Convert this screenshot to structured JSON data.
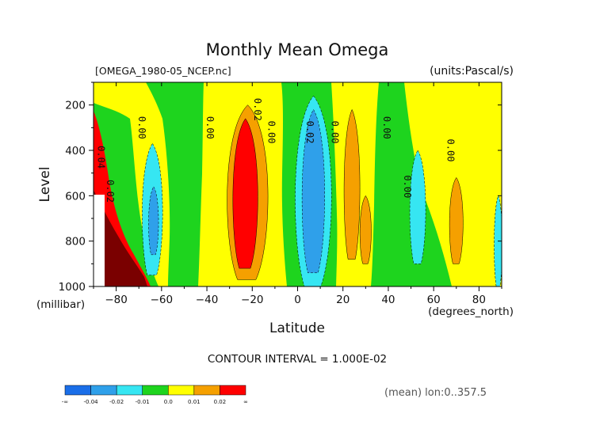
{
  "chart_data": {
    "type": "heatmap",
    "title": "Monthly Mean Omega",
    "file_label": "[OMEGA_1980-05_NCEP.nc]",
    "units_label": "(units:Pascal/s)",
    "xlabel": "Latitude",
    "x_units": "(degrees_north)",
    "ylabel": "Level",
    "y_units": "(millibar)",
    "xlim": [
      -90,
      90
    ],
    "ylim": [
      1000,
      100
    ],
    "x_ticks": [
      -80,
      -60,
      -40,
      -20,
      0,
      20,
      40,
      60,
      80
    ],
    "y_ticks": [
      200,
      400,
      600,
      800,
      1000
    ],
    "contour_interval": "CONTOUR INTERVAL = 1.000E-02",
    "footnote": "(mean) lon:0..357.5",
    "colorbar": {
      "colors": [
        "#1a6ee8",
        "#2fa0ea",
        "#36e6f2",
        "#1ed41e",
        "#ffff00",
        "#f5a000",
        "#ff0000"
      ],
      "labels": [
        "-∞",
        "-0.04",
        "-0.02",
        "-0.01",
        "0.0",
        "0.01",
        "0.02",
        "∞"
      ]
    },
    "contour_labels": [
      {
        "lat": -88,
        "lev": 430,
        "text": "0.04"
      },
      {
        "lat": -84,
        "lev": 580,
        "text": "0.02"
      },
      {
        "lat": -70,
        "lev": 300,
        "text": "0.00"
      },
      {
        "lat": -40,
        "lev": 300,
        "text": "0.00"
      },
      {
        "lat": -19,
        "lev": 220,
        "text": "0.02"
      },
      {
        "lat": -13,
        "lev": 320,
        "text": "0.00"
      },
      {
        "lat": 4,
        "lev": 320,
        "text": "0.02"
      },
      {
        "lat": 15,
        "lev": 320,
        "text": "0.00"
      },
      {
        "lat": 38,
        "lev": 300,
        "text": "0.00"
      },
      {
        "lat": 47,
        "lev": 560,
        "text": "0.00"
      },
      {
        "lat": 66,
        "lev": 400,
        "text": "0.00"
      }
    ],
    "bands": [
      {
        "level": "-0.01",
        "color": "#36e6f2",
        "center_lat": -64,
        "lat_halfwidth": 4.5,
        "lev_top": 370,
        "lev_bottom": 950
      },
      {
        "level": "-0.02",
        "color": "#2fa0ea",
        "center_lat": -63.5,
        "lat_halfwidth": 2.2,
        "lev_top": 560,
        "lev_bottom": 860
      },
      {
        "level": "0.01",
        "color": "#f5a000",
        "center_lat": -22,
        "lat_halfwidth": 9,
        "lev_top": 200,
        "lev_bottom": 970
      },
      {
        "level": "0.02",
        "color": "#ff0000",
        "center_lat": -23,
        "lat_halfwidth": 5.5,
        "lev_top": 260,
        "lev_bottom": 920
      },
      {
        "level": "-0.01",
        "color": "#36e6f2",
        "center_lat": 7,
        "lat_halfwidth": 8,
        "lev_top": 160,
        "lev_bottom": 1000
      },
      {
        "level": "-0.02",
        "color": "#2fa0ea",
        "center_lat": 7,
        "lat_halfwidth": 5,
        "lev_top": 220,
        "lev_bottom": 940
      },
      {
        "level": "0.01",
        "color": "#f5a000",
        "center_lat": 24,
        "lat_halfwidth": 3.5,
        "lev_top": 220,
        "lev_bottom": 880
      },
      {
        "level": "0.01",
        "color": "#f5a000",
        "center_lat": 30,
        "lat_halfwidth": 2.5,
        "lev_top": 600,
        "lev_bottom": 900
      },
      {
        "level": "-0.01",
        "color": "#36e6f2",
        "center_lat": 53,
        "lat_halfwidth": 3.5,
        "lev_top": 400,
        "lev_bottom": 900
      },
      {
        "level": "0.01",
        "color": "#f5a000",
        "center_lat": 70,
        "lat_halfwidth": 3,
        "lev_top": 520,
        "lev_bottom": 900
      },
      {
        "level": "-0.01",
        "color": "#36e6f2",
        "center_lat": 88.5,
        "lat_halfwidth": 1.8,
        "lev_top": 600,
        "lev_bottom": 1000
      }
    ]
  }
}
